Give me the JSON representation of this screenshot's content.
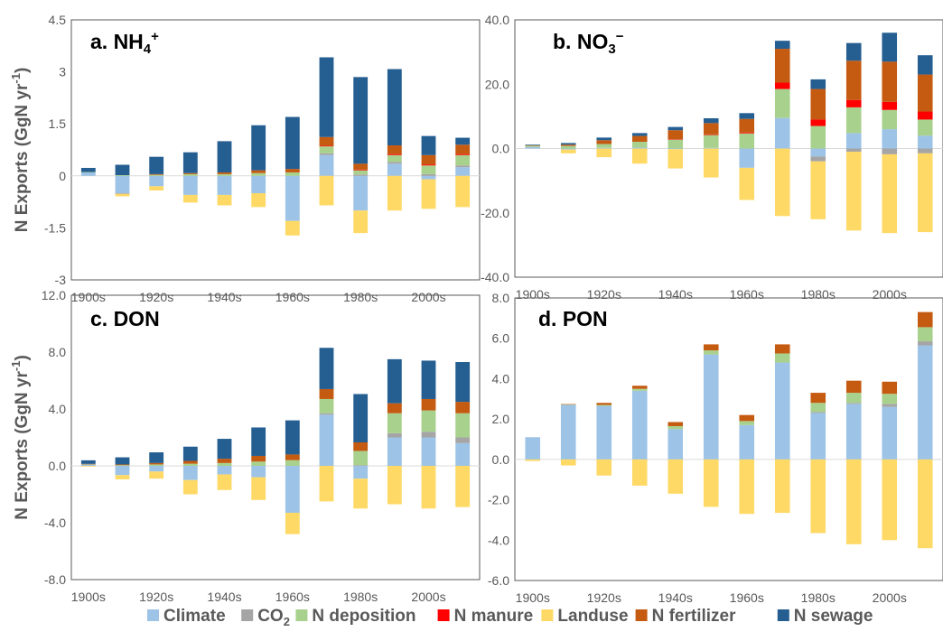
{
  "legend": [
    {
      "key": "climate",
      "label": "Climate",
      "color": "#9DC3E6"
    },
    {
      "key": "co2",
      "label": "CO",
      "sub": "2",
      "color": "#A5A5A5"
    },
    {
      "key": "ndep",
      "label": "N deposition",
      "color": "#A9D18E"
    },
    {
      "key": "nmanure",
      "label": "N manure",
      "color": "#FF0000"
    },
    {
      "key": "landuse",
      "label": "Landuse",
      "color": "#FFD966"
    },
    {
      "key": "nfert",
      "label": "N fertilizer",
      "color": "#C55A11"
    },
    {
      "key": "nsewage",
      "label": "N sewage",
      "color": "#255E91"
    }
  ],
  "chart_data": [
    {
      "id": "a",
      "type": "bar",
      "stacked": true,
      "title": {
        "text": "a. NH",
        "sub": "4",
        "sup": "+"
      },
      "ylabel": {
        "text": "N Exports (GgN yr",
        "sup": "-1",
        "end": ")"
      },
      "ylim": [
        -3,
        4.5
      ],
      "yticks": [
        "-3",
        "-1.5",
        "0",
        "1.5",
        "3",
        "4.5"
      ],
      "yticks_values": [
        -3,
        -1.5,
        0,
        1.5,
        3,
        4.5
      ],
      "categories": [
        "1900s",
        "1910s",
        "1920s",
        "1930s",
        "1940s",
        "1950s",
        "1960s",
        "1970s",
        "1980s",
        "1990s",
        "2000s",
        "2010s"
      ],
      "xtick_labels": [
        "1900s",
        "",
        "1920s",
        "",
        "1940s",
        "",
        "1960s",
        "",
        "1980s",
        "",
        "2000s",
        ""
      ],
      "series": [
        {
          "key": "climate",
          "values": [
            0.1,
            -0.5,
            -0.3,
            -0.55,
            -0.55,
            -0.5,
            -1.3,
            0.6,
            -1.0,
            0.35,
            -0.1,
            0.25
          ]
        },
        {
          "key": "co2",
          "values": [
            0,
            -0.02,
            0,
            0,
            0,
            0,
            0,
            0.05,
            0.04,
            0.05,
            0.05,
            0.05
          ]
        },
        {
          "key": "ndep",
          "values": [
            0.01,
            0.02,
            0.03,
            0.05,
            0.05,
            0.08,
            0.1,
            0.2,
            0.12,
            0.2,
            0.25,
            0.3
          ]
        },
        {
          "key": "nmanure",
          "values": [
            0,
            0,
            0,
            0,
            0,
            0,
            0,
            0.02,
            0.02,
            0.03,
            0.03,
            0.03
          ]
        },
        {
          "key": "landuse",
          "values": [
            0,
            -0.07,
            -0.12,
            -0.22,
            -0.3,
            -0.4,
            -0.42,
            -0.85,
            -0.65,
            -1.0,
            -0.85,
            -0.9
          ]
        },
        {
          "key": "nfert",
          "values": [
            0,
            0,
            0.02,
            0.03,
            0.05,
            0.08,
            0.1,
            0.25,
            0.17,
            0.25,
            0.27,
            0.27
          ]
        },
        {
          "key": "nsewage",
          "values": [
            0.12,
            0.3,
            0.5,
            0.6,
            0.9,
            1.3,
            1.5,
            2.3,
            2.5,
            2.2,
            0.55,
            0.2
          ]
        }
      ]
    },
    {
      "id": "b",
      "type": "bar",
      "stacked": true,
      "title": {
        "text": "b. NO",
        "sub": "3",
        "sup": "−"
      },
      "ylim": [
        -40,
        40
      ],
      "yticks": [
        "-40.0",
        "-20.0",
        "0.0",
        "20.0",
        "40.0"
      ],
      "yticks_values": [
        -40,
        -20,
        0,
        20,
        40
      ],
      "categories": [
        "1900s",
        "1910s",
        "1920s",
        "1930s",
        "1940s",
        "1950s",
        "1960s",
        "1970s",
        "1980s",
        "1990s",
        "2000s",
        "2010s"
      ],
      "xtick_labels": [
        "1900s",
        "",
        "1920s",
        "",
        "1940s",
        "",
        "1960s",
        "",
        "1980s",
        "",
        "2000s",
        ""
      ],
      "series": [
        {
          "key": "climate",
          "values": [
            0.5,
            -0.3,
            0.2,
            0.3,
            -0.2,
            0.2,
            -6.0,
            9.5,
            -2.5,
            4.8,
            6.0,
            4.0
          ]
        },
        {
          "key": "co2",
          "values": [
            0,
            0,
            0,
            0,
            0,
            0,
            0,
            0,
            -1.5,
            -1.0,
            -1.8,
            -1.5
          ]
        },
        {
          "key": "ndep",
          "values": [
            0.4,
            0.8,
            1.2,
            1.8,
            2.8,
            4.0,
            4.7,
            9.0,
            7.0,
            8.0,
            6.0,
            5.0
          ]
        },
        {
          "key": "nmanure",
          "values": [
            0,
            0,
            0,
            0,
            0.1,
            0.2,
            0.3,
            2.0,
            2.0,
            2.3,
            2.5,
            2.5
          ]
        },
        {
          "key": "landuse",
          "values": [
            0,
            -1.2,
            -2.7,
            -4.7,
            -6.0,
            -9.0,
            -10.0,
            -21.0,
            -18.0,
            -24.5,
            -24.5,
            -24.5
          ]
        },
        {
          "key": "nfert",
          "values": [
            0.1,
            0.4,
            1.2,
            1.8,
            2.8,
            3.5,
            4.2,
            10.5,
            9.5,
            12.2,
            12.5,
            11.5
          ]
        },
        {
          "key": "nsewage",
          "values": [
            0.2,
            0.5,
            0.8,
            0.9,
            1.0,
            1.5,
            1.8,
            2.5,
            3.0,
            5.5,
            9.0,
            6.0
          ]
        }
      ]
    },
    {
      "id": "c",
      "type": "bar",
      "stacked": true,
      "title": {
        "text": "c. DON"
      },
      "ylabel": {
        "text": "N Exports (GgN yr",
        "sup": "-1",
        "end": ")"
      },
      "ylim": [
        -8,
        12
      ],
      "yticks": [
        "-8.0",
        "-4.0",
        "0.0",
        "4.0",
        "8.0",
        "12.0"
      ],
      "yticks_values": [
        -8,
        -4,
        0,
        4,
        8,
        12
      ],
      "categories": [
        "1900s",
        "1910s",
        "1920s",
        "1930s",
        "1940s",
        "1950s",
        "1960s",
        "1970s",
        "1980s",
        "1990s",
        "2000s",
        "2010s"
      ],
      "xtick_labels": [
        "1900s",
        "",
        "1920s",
        "",
        "1940s",
        "",
        "1960s",
        "",
        "1980s",
        "",
        "2000s",
        ""
      ],
      "series": [
        {
          "key": "climate",
          "values": [
            0.1,
            -0.65,
            -0.4,
            -1.0,
            -0.6,
            -0.8,
            -3.3,
            3.6,
            -0.9,
            2.0,
            2.0,
            1.6
          ]
        },
        {
          "key": "co2",
          "values": [
            0,
            0,
            0,
            0,
            0,
            0,
            0,
            0.1,
            0.05,
            0.3,
            0.4,
            0.4
          ]
        },
        {
          "key": "ndep",
          "values": [
            0.02,
            0.05,
            0.1,
            0.15,
            0.2,
            0.3,
            0.4,
            1.0,
            1.0,
            1.4,
            1.5,
            1.7
          ]
        },
        {
          "key": "nmanure",
          "values": [
            0,
            0,
            0,
            0,
            0,
            0,
            0,
            0,
            0,
            0,
            0,
            0
          ]
        },
        {
          "key": "landuse",
          "values": [
            -0.05,
            -0.3,
            -0.5,
            -1.0,
            -1.1,
            -1.6,
            -1.5,
            -2.5,
            -2.1,
            -2.7,
            -3.0,
            -2.9
          ]
        },
        {
          "key": "nfert",
          "values": [
            0.02,
            0.05,
            0.1,
            0.2,
            0.3,
            0.4,
            0.4,
            0.7,
            0.6,
            0.7,
            0.8,
            0.8
          ]
        },
        {
          "key": "nsewage",
          "values": [
            0.25,
            0.5,
            0.75,
            1.0,
            1.4,
            2.0,
            2.4,
            2.9,
            3.4,
            3.1,
            2.7,
            2.8
          ]
        }
      ]
    },
    {
      "id": "d",
      "type": "bar",
      "stacked": true,
      "title": {
        "text": "d. PON"
      },
      "ylim": [
        -6,
        8
      ],
      "yticks": [
        "-6.0",
        "-4.0",
        "-2.0",
        "0.0",
        "2.0",
        "4.0",
        "6.0",
        "8.0"
      ],
      "yticks_values": [
        -6,
        -4,
        -2,
        0,
        2,
        4,
        6,
        8
      ],
      "categories": [
        "1900s",
        "1910s",
        "1920s",
        "1930s",
        "1940s",
        "1950s",
        "1960s",
        "1970s",
        "1980s",
        "1990s",
        "2000s",
        "2010s"
      ],
      "xtick_labels": [
        "1900s",
        "",
        "1920s",
        "",
        "1940s",
        "",
        "1960s",
        "",
        "1980s",
        "",
        "2000s",
        ""
      ],
      "series": [
        {
          "key": "climate",
          "values": [
            1.1,
            2.7,
            2.65,
            3.4,
            1.5,
            5.2,
            1.7,
            4.8,
            2.3,
            2.75,
            2.6,
            5.65
          ]
        },
        {
          "key": "co2",
          "values": [
            0,
            0,
            0,
            0,
            0,
            0,
            0,
            0,
            0.05,
            0.05,
            0.15,
            0.2
          ]
        },
        {
          "key": "ndep",
          "values": [
            0,
            0.02,
            0.05,
            0.1,
            0.15,
            0.2,
            0.2,
            0.45,
            0.45,
            0.5,
            0.5,
            0.7
          ]
        },
        {
          "key": "nmanure",
          "values": [
            0,
            0,
            0,
            0,
            0,
            0,
            0,
            0,
            0,
            0,
            0,
            0
          ]
        },
        {
          "key": "landuse",
          "values": [
            -0.08,
            -0.3,
            -0.8,
            -1.3,
            -1.7,
            -2.35,
            -2.7,
            -2.65,
            -3.65,
            -4.2,
            -4.0,
            -4.4
          ]
        },
        {
          "key": "nfert",
          "values": [
            0,
            0.02,
            0.1,
            0.15,
            0.2,
            0.3,
            0.3,
            0.45,
            0.5,
            0.6,
            0.6,
            0.75
          ]
        },
        {
          "key": "nsewage",
          "values": [
            0,
            0,
            0,
            0,
            0,
            0,
            0,
            0,
            0,
            0,
            0,
            0
          ]
        }
      ]
    }
  ]
}
